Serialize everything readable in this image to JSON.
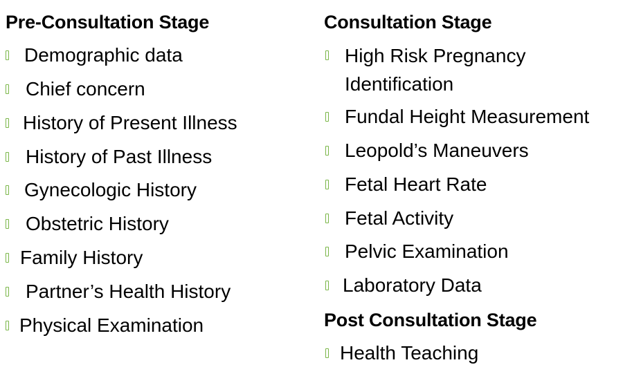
{
  "colors": {
    "bullet": "#7ab648",
    "text": "#000000",
    "background": "#ffffff"
  },
  "bullet_icon": "hollow-rectangle",
  "pre_consultation": {
    "heading": "Pre-Consultation Stage",
    "items": [
      "Demographic data",
      "Chief concern",
      "History of Present Illness",
      "History of Past Illness",
      "Gynecologic History",
      "Obstetric History",
      "Family History",
      "Partner’s Health History",
      "Physical Examination"
    ]
  },
  "consultation": {
    "heading": "Consultation Stage",
    "items": [
      "High Risk Pregnancy Identification",
      "Fundal Height Measurement",
      "Leopold’s Maneuvers",
      "Fetal Heart Rate",
      "Fetal Activity",
      "Pelvic Examination",
      "Laboratory Data"
    ]
  },
  "post_consultation": {
    "heading": "Post Consultation Stage",
    "items": [
      "Health Teaching"
    ]
  }
}
